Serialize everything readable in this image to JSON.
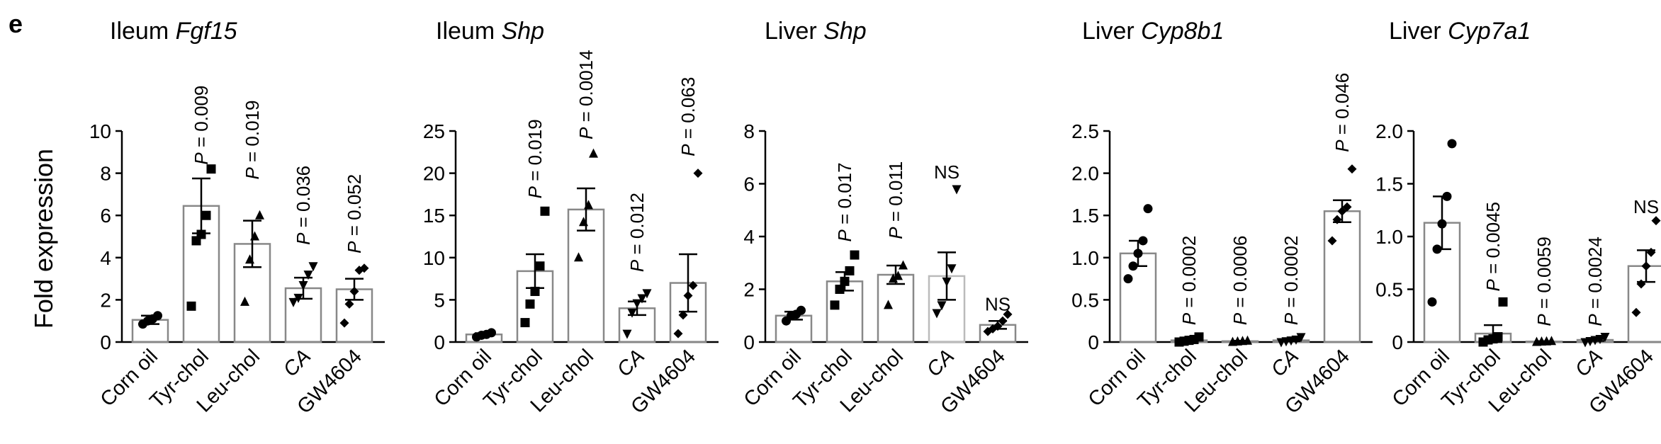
{
  "panel_label": "e",
  "y_axis_label": "Fold expression",
  "chart_data": [
    {
      "type": "bar",
      "title_prefix": "Ileum",
      "title_gene": "Fgf15",
      "categories": [
        "Corn oil",
        "Tyr-chol",
        "Leu-chol",
        "CA",
        "GW4604"
      ],
      "italic_categories": [
        false,
        false,
        false,
        true,
        false
      ],
      "ylim": [
        0,
        10
      ],
      "yticks": [
        0,
        2,
        4,
        6,
        8,
        10
      ],
      "means": [
        1.05,
        6.45,
        4.65,
        2.55,
        2.5
      ],
      "sems": [
        0.2,
        1.3,
        1.1,
        0.5,
        0.5
      ],
      "points": [
        [
          0.85,
          1.0,
          1.1,
          1.25
        ],
        [
          1.7,
          4.8,
          5.1,
          6.0,
          8.2
        ],
        [
          1.9,
          3.9,
          5.0,
          6.0
        ],
        [
          1.9,
          2.1,
          2.7,
          3.2,
          3.6
        ],
        [
          0.9,
          1.8,
          2.4,
          3.4,
          3.5
        ]
      ],
      "markers": [
        "circle",
        "square",
        "triangle",
        "triangle-down",
        "diamond"
      ],
      "bar_colors": [
        "#888888",
        "#888888",
        "#888888",
        "#888888",
        "#888888"
      ],
      "annotations": [
        {
          "index": 1,
          "prefix": "P",
          "text": " = 0.009",
          "at": 8.4
        },
        {
          "index": 2,
          "prefix": "P",
          "text": " = 0.019",
          "at": 7.7
        },
        {
          "index": 3,
          "prefix": "P",
          "text": " = 0.036",
          "at": 4.6
        },
        {
          "index": 4,
          "prefix": "P",
          "text": " = 0.052",
          "at": 4.2
        }
      ]
    },
    {
      "type": "bar",
      "title_prefix": "Ileum",
      "title_gene": "Shp",
      "categories": [
        "Corn oil",
        "Tyr-chol",
        "Leu-chol",
        "CA",
        "GW4604"
      ],
      "italic_categories": [
        false,
        false,
        false,
        true,
        false
      ],
      "ylim": [
        0,
        25
      ],
      "yticks": [
        0,
        5,
        10,
        15,
        20,
        25
      ],
      "means": [
        0.9,
        8.4,
        15.7,
        4.0,
        7.0
      ],
      "sems": [
        0.15,
        2.0,
        2.5,
        0.8,
        3.4
      ],
      "points": [
        [
          0.6,
          0.8,
          0.9,
          1.1
        ],
        [
          2.3,
          4.5,
          6.0,
          9.0,
          15.5
        ],
        [
          10.0,
          14.2,
          16.2,
          22.3
        ],
        [
          1.0,
          3.5,
          4.6,
          5.2,
          5.8
        ],
        [
          1.0,
          3.2,
          5.5,
          6.7,
          20.0
        ]
      ],
      "markers": [
        "circle",
        "square",
        "triangle",
        "triangle-down",
        "diamond"
      ],
      "bar_colors": [
        "#888888",
        "#888888",
        "#888888",
        "#888888",
        "#888888"
      ],
      "annotations": [
        {
          "index": 1,
          "prefix": "P",
          "text": " = 0.019",
          "at": 17.0
        },
        {
          "index": 2,
          "prefix": "P",
          "text": " = 0.0014",
          "at": 24.0
        },
        {
          "index": 3,
          "prefix": "P",
          "text": " = 0.012",
          "at": 8.3
        },
        {
          "index": 4,
          "prefix": "P",
          "text": " = 0.063",
          "at": 22.0
        }
      ]
    },
    {
      "type": "bar",
      "title_prefix": "Liver",
      "title_gene": "Shp",
      "categories": [
        "Corn oil",
        "Tyr-chol",
        "Leu-chol",
        "CA",
        "GW4604"
      ],
      "italic_categories": [
        false,
        false,
        false,
        true,
        false
      ],
      "ylim": [
        0,
        8
      ],
      "yticks": [
        0,
        2,
        4,
        6,
        8
      ],
      "means": [
        1.0,
        2.3,
        2.55,
        2.5,
        0.65
      ],
      "sems": [
        0.15,
        0.35,
        0.35,
        0.9,
        0.15
      ],
      "points": [
        [
          0.8,
          1.0,
          1.05,
          1.2
        ],
        [
          1.4,
          2.0,
          2.3,
          2.7,
          3.3
        ],
        [
          1.4,
          2.4,
          2.5,
          2.9
        ],
        [
          1.1,
          1.4,
          2.3,
          2.8,
          5.8
        ],
        [
          0.4,
          0.5,
          0.6,
          0.8,
          1.05
        ]
      ],
      "markers": [
        "circle",
        "square",
        "triangle",
        "triangle-down",
        "diamond"
      ],
      "bar_colors": [
        "#888888",
        "#888888",
        "#888888",
        "#bbbbbb",
        "#888888"
      ],
      "annotations": [
        {
          "index": 1,
          "prefix": "P",
          "text": " = 0.017",
          "at": 3.8
        },
        {
          "index": 2,
          "prefix": "P",
          "text": " = 0.011",
          "at": 3.9
        },
        {
          "index": 3,
          "prefix": "",
          "text": "NS",
          "at": 6.2
        },
        {
          "index": 4,
          "prefix": "",
          "text": "NS",
          "at": 1.2
        }
      ]
    },
    {
      "type": "bar",
      "title_prefix": "Liver",
      "title_gene": "Cyp8b1",
      "categories": [
        "Corn oil",
        "Tyr-chol",
        "Leu-chol",
        "CA",
        "GW4604"
      ],
      "italic_categories": [
        false,
        false,
        false,
        true,
        false
      ],
      "ylim": [
        0,
        2.5
      ],
      "yticks": [
        0,
        0.5,
        1.0,
        1.5,
        2.0,
        2.5
      ],
      "ytick_labels": [
        "0",
        "0.5",
        "1.0",
        "1.5",
        "2.0",
        "2.5"
      ],
      "means": [
        1.05,
        0.02,
        0.01,
        0.02,
        1.55
      ],
      "sems": [
        0.15,
        0.01,
        0.005,
        0.01,
        0.13
      ],
      "points": [
        [
          0.75,
          0.9,
          1.05,
          1.2,
          1.58
        ],
        [
          0.0,
          0.01,
          0.02,
          0.03,
          0.06
        ],
        [
          0.0,
          0.005,
          0.01,
          0.015
        ],
        [
          0.0,
          0.01,
          0.02,
          0.03,
          0.06
        ],
        [
          1.2,
          1.45,
          1.55,
          1.6,
          2.05
        ]
      ],
      "markers": [
        "circle",
        "square",
        "triangle",
        "triangle-down",
        "diamond"
      ],
      "bar_colors": [
        "#888888",
        "#888888",
        "#888888",
        "#888888",
        "#888888"
      ],
      "annotations": [
        {
          "index": 1,
          "prefix": "P",
          "text": " = 0.0002",
          "at": 0.2
        },
        {
          "index": 2,
          "prefix": "P",
          "text": " = 0.0006",
          "at": 0.2
        },
        {
          "index": 3,
          "prefix": "P",
          "text": " = 0.0002",
          "at": 0.2
        },
        {
          "index": 4,
          "prefix": "P",
          "text": " = 0.046",
          "at": 2.25
        }
      ]
    },
    {
      "type": "bar",
      "title_prefix": "Liver",
      "title_gene": "Cyp7a1",
      "categories": [
        "Corn oil",
        "Tyr-chol",
        "Leu-chol",
        "CA",
        "GW4604"
      ],
      "italic_categories": [
        false,
        false,
        false,
        true,
        false
      ],
      "ylim": [
        0,
        2.0
      ],
      "yticks": [
        0,
        0.5,
        1.0,
        1.5,
        2.0
      ],
      "ytick_labels": [
        "0",
        "0.5",
        "1.0",
        "1.5",
        "2.0"
      ],
      "means": [
        1.13,
        0.08,
        0.005,
        0.02,
        0.72
      ],
      "sems": [
        0.25,
        0.08,
        0.003,
        0.01,
        0.15
      ],
      "points": [
        [
          0.38,
          0.88,
          1.12,
          1.38,
          1.88
        ],
        [
          0.0,
          0.02,
          0.03,
          0.05,
          0.38
        ],
        [
          0.0,
          0.003,
          0.005,
          0.008
        ],
        [
          0.0,
          0.01,
          0.02,
          0.03,
          0.05
        ],
        [
          0.28,
          0.55,
          0.72,
          0.85,
          1.15
        ]
      ],
      "markers": [
        "circle",
        "square",
        "triangle",
        "triangle-down",
        "diamond"
      ],
      "bar_colors": [
        "#888888",
        "#888888",
        "#888888",
        "#888888",
        "#888888"
      ],
      "annotations": [
        {
          "index": 1,
          "prefix": "P",
          "text": " = 0.0045",
          "at": 0.48
        },
        {
          "index": 2,
          "prefix": "P",
          "text": " = 0.0059",
          "at": 0.15
        },
        {
          "index": 3,
          "prefix": "P",
          "text": " = 0.0024",
          "at": 0.15
        },
        {
          "index": 4,
          "prefix": "",
          "text": "NS",
          "at": 1.22
        }
      ]
    }
  ]
}
